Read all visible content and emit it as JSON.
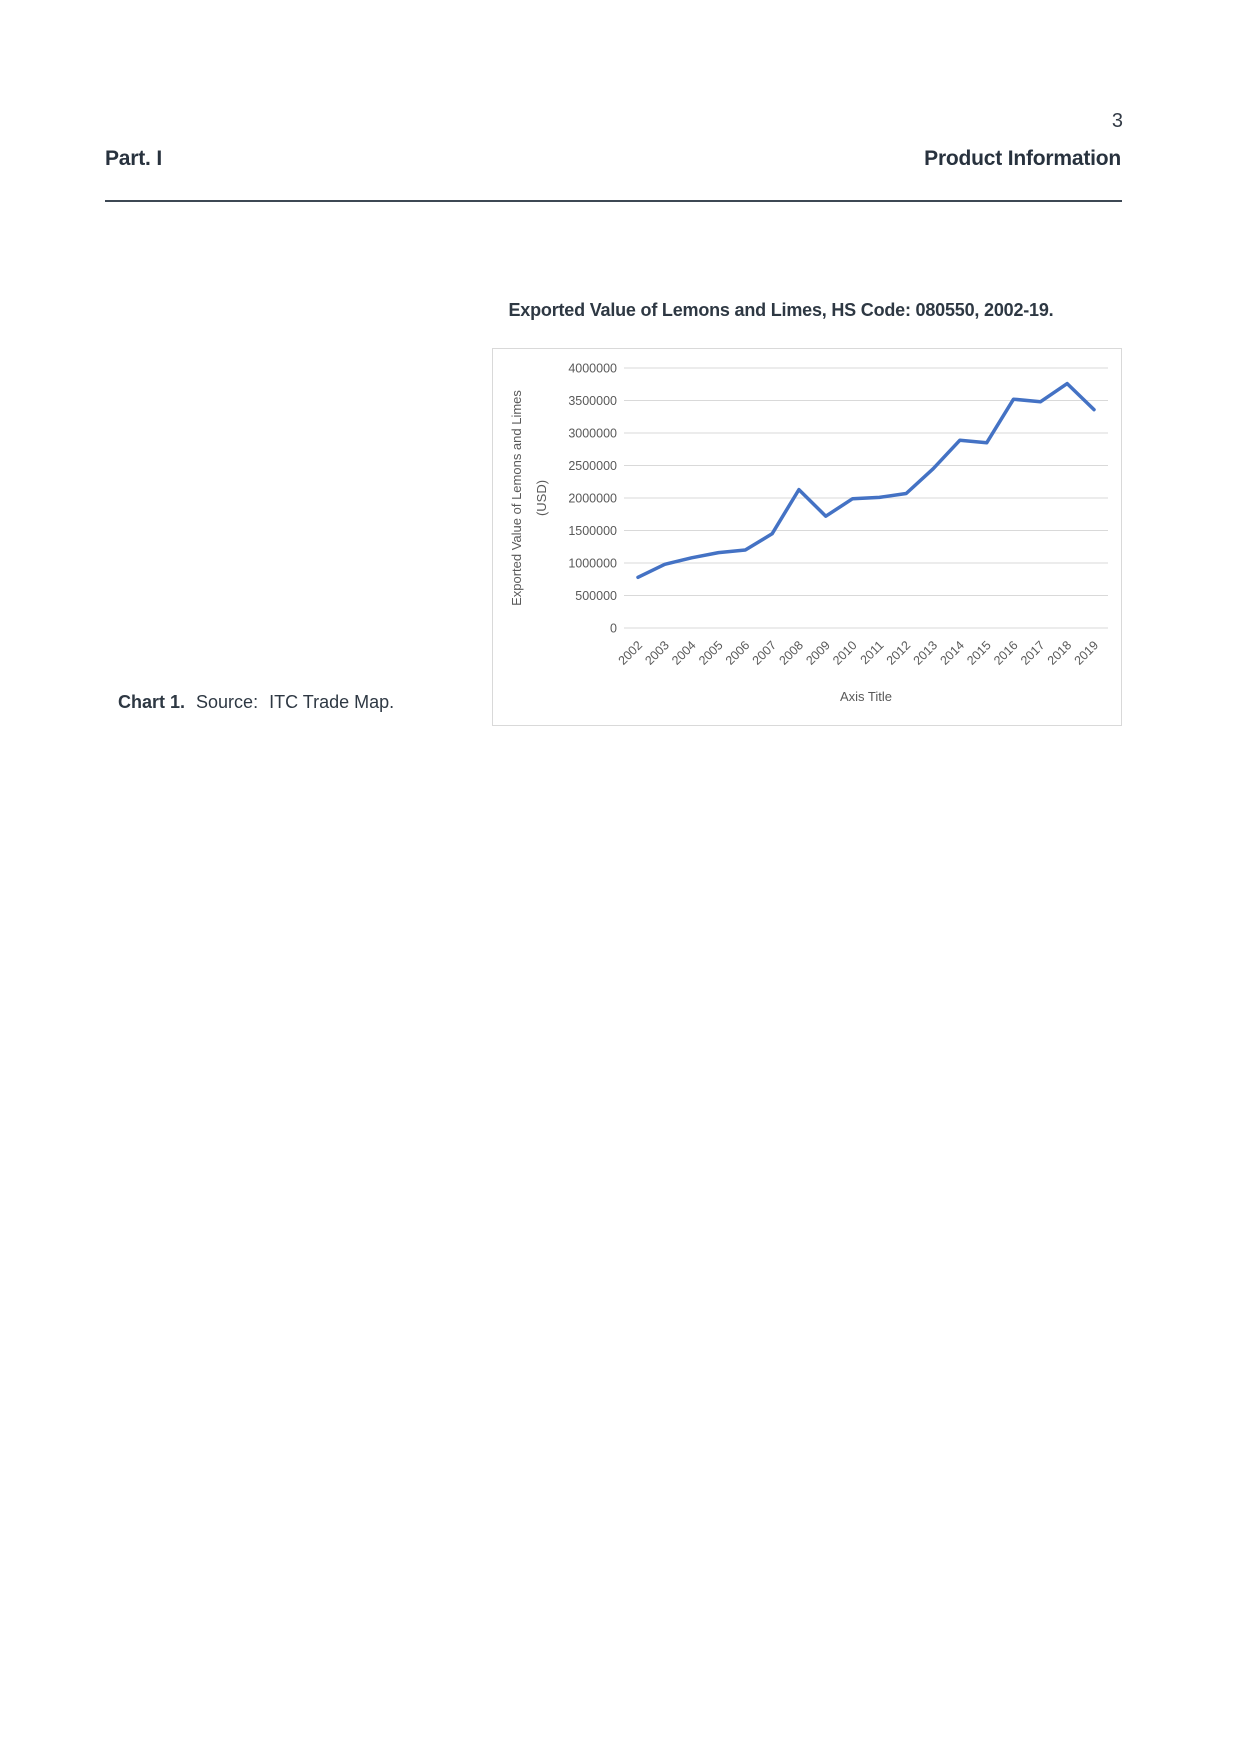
{
  "page": {
    "number": "3"
  },
  "header": {
    "left": "Part. I",
    "right": "Product Information"
  },
  "figure": {
    "title": "Exported Value of Lemons and Limes, HS Code: 080550, 2002-19.",
    "caption_label": "Chart 1.",
    "caption_source_label": "Source:",
    "caption_source_value": "ITC Trade Map."
  },
  "chart_data": {
    "type": "line",
    "title": "Exported Value of Lemons and Limes, HS Code: 080550, 2002-19.",
    "x": [
      "2002",
      "2003",
      "2004",
      "2005",
      "2006",
      "2007",
      "2008",
      "2009",
      "2010",
      "2011",
      "2012",
      "2013",
      "2014",
      "2015",
      "2016",
      "2017",
      "2018",
      "2019"
    ],
    "series": [
      {
        "name": "Exported Value (USD)",
        "values": [
          780000,
          980000,
          1080000,
          1160000,
          1200000,
          1450000,
          2130000,
          1720000,
          1990000,
          2010000,
          2070000,
          2450000,
          2890000,
          2850000,
          3520000,
          3480000,
          3760000,
          3360000
        ]
      }
    ],
    "xlabel": "Axis Title",
    "ylabel_line1": "Exported Value of Lemons and Limes",
    "ylabel_line2": "(USD)",
    "ylim": [
      0,
      4000000
    ],
    "ytick_step": 500000,
    "grid": true,
    "legend_position": "none",
    "line_color": "#4472C4",
    "grid_color": "#D9D9D9",
    "label_color": "#595959",
    "border_color": "#D9D9D9"
  }
}
